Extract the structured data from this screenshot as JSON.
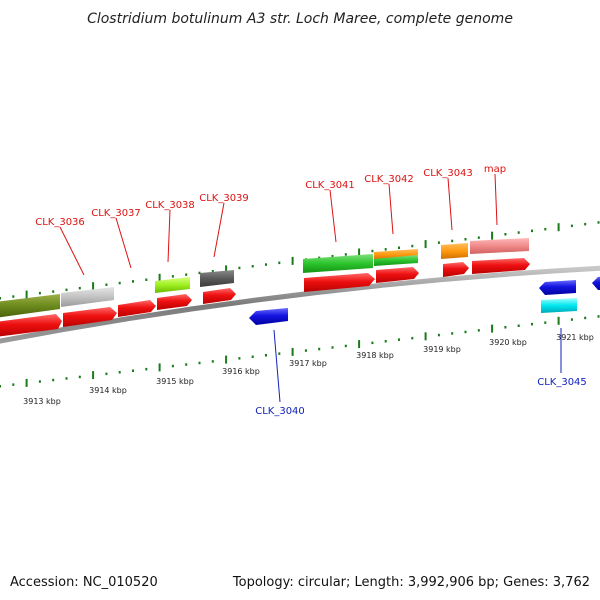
{
  "title": "Clostridium botulinum A3 str. Loch Maree, complete genome",
  "footer": {
    "accession": "Accession: NC_010520",
    "summary": "Topology: circular; Length: 3,992,906 bp; Genes: 3,762"
  },
  "scale_labels": [
    "3913 kbp",
    "3914 kbp",
    "3915 kbp",
    "3916 kbp",
    "3917 kbp",
    "3918 kbp",
    "3919 kbp",
    "3920 kbp",
    "3921 kbp"
  ],
  "forward_genes": [
    {
      "label": "CLK_3036",
      "color": "#e8101a"
    },
    {
      "label": "CLK_3037",
      "color": "#e8101a"
    },
    {
      "label": "CLK_3038",
      "color": "#e8101a"
    },
    {
      "label": "CLK_3039",
      "color": "#e8101a"
    },
    {
      "label": "CLK_3041",
      "color": "#e8101a"
    },
    {
      "label": "CLK_3042",
      "color": "#e8101a"
    },
    {
      "label": "CLK_3043",
      "color": "#e8101a"
    },
    {
      "label": "map",
      "color": "#e8101a"
    }
  ],
  "reverse_genes": [
    {
      "label": "CLK_3040",
      "color": "#1515d8"
    },
    {
      "label": "CLK_3045",
      "color": "#1515d8"
    }
  ],
  "colors": {
    "backbone": "#8a8a8a",
    "ticks": "#1a7a1a",
    "forward_label": "#dd1111",
    "reverse_label": "#1122bb"
  }
}
